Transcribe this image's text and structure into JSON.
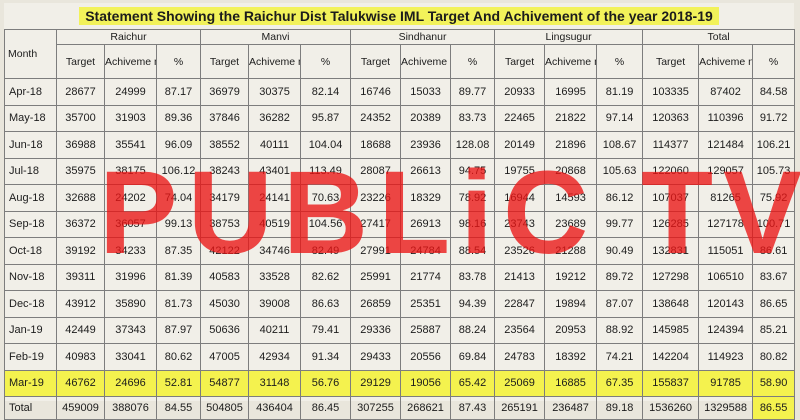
{
  "title": "Statement Showing the Raichur  Dist Talukwise IML Target And Achivement of the year 2018-19",
  "header": {
    "month_label": "Month",
    "groups": [
      "Raichur",
      "Manvi",
      "Sindhanur",
      "Lingsugur",
      "Total"
    ],
    "sub_labels": [
      "Target",
      "Achiveme nt",
      "%"
    ]
  },
  "rows": [
    {
      "month": "Apr-18",
      "cells": [
        "28677",
        "24999",
        "87.17",
        "36979",
        "30375",
        "82.14",
        "16746",
        "15033",
        "89.77",
        "20933",
        "16995",
        "81.19",
        "103335",
        "87402",
        "84.58"
      ]
    },
    {
      "month": "May-18",
      "cells": [
        "35700",
        "31903",
        "89.36",
        "37846",
        "36282",
        "95.87",
        "24352",
        "20389",
        "83.73",
        "22465",
        "21822",
        "97.14",
        "120363",
        "110396",
        "91.72"
      ]
    },
    {
      "month": "Jun-18",
      "cells": [
        "36988",
        "35541",
        "96.09",
        "38552",
        "40111",
        "104.04",
        "18688",
        "23936",
        "128.08",
        "20149",
        "21896",
        "108.67",
        "114377",
        "121484",
        "106.21"
      ]
    },
    {
      "month": "Jul-18",
      "cells": [
        "35975",
        "38175",
        "106.12",
        "38243",
        "43401",
        "113.49",
        "28087",
        "26613",
        "94.75",
        "19755",
        "20868",
        "105.63",
        "122060",
        "129057",
        "105.73"
      ]
    },
    {
      "month": "Aug-18",
      "cells": [
        "32688",
        "24202",
        "74.04",
        "34179",
        "24141",
        "70.63",
        "23226",
        "18329",
        "78.92",
        "16944",
        "14593",
        "86.12",
        "107037",
        "81265",
        "75.92"
      ]
    },
    {
      "month": "Sep-18",
      "cells": [
        "36372",
        "36057",
        "99.13",
        "38753",
        "40519",
        "104.56",
        "27417",
        "26913",
        "98.16",
        "23743",
        "23689",
        "99.77",
        "126285",
        "127178",
        "100.71"
      ]
    },
    {
      "month": "Oct-18",
      "cells": [
        "39192",
        "34233",
        "87.35",
        "42122",
        "34746",
        "82.49",
        "27991",
        "24784",
        "88.54",
        "23526",
        "21288",
        "90.49",
        "132831",
        "115051",
        "86.61"
      ]
    },
    {
      "month": "Nov-18",
      "cells": [
        "39311",
        "31996",
        "81.39",
        "40583",
        "33528",
        "82.62",
        "25991",
        "21774",
        "83.78",
        "21413",
        "19212",
        "89.72",
        "127298",
        "106510",
        "83.67"
      ]
    },
    {
      "month": "Dec-18",
      "cells": [
        "43912",
        "35890",
        "81.73",
        "45030",
        "39008",
        "86.63",
        "26859",
        "25351",
        "94.39",
        "22847",
        "19894",
        "87.07",
        "138648",
        "120143",
        "86.65"
      ]
    },
    {
      "month": "Jan-19",
      "cells": [
        "42449",
        "37343",
        "87.97",
        "50636",
        "40211",
        "79.41",
        "29336",
        "25887",
        "88.24",
        "23564",
        "20953",
        "88.92",
        "145985",
        "124394",
        "85.21"
      ]
    },
    {
      "month": "Feb-19",
      "cells": [
        "40983",
        "33041",
        "80.62",
        "47005",
        "42934",
        "91.34",
        "29433",
        "20556",
        "69.84",
        "24783",
        "18392",
        "74.21",
        "142204",
        "114923",
        "80.82"
      ]
    },
    {
      "month": "Mar-19",
      "cells": [
        "46762",
        "24696",
        "52.81",
        "54877",
        "31148",
        "56.76",
        "29129",
        "19056",
        "65.42",
        "25069",
        "16885",
        "67.35",
        "155837",
        "91785",
        "58.90"
      ]
    }
  ],
  "total_row": {
    "label": "Total",
    "cells": [
      "459009",
      "388076",
      "84.55",
      "504805",
      "436404",
      "86.45",
      "307255",
      "268621",
      "87.43",
      "265191",
      "236487",
      "89.18",
      "1536260",
      "1329588",
      "86.55"
    ]
  },
  "watermark": "PUBLiC TV",
  "colors": {
    "highlight": "#f4f24e",
    "watermark": "#eb1414",
    "paper": "#f1efe8"
  }
}
